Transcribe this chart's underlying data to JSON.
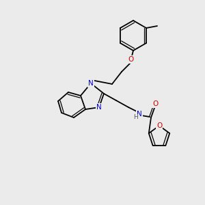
{
  "background_color": "#ebebeb",
  "atom_colors": {
    "C": "#000000",
    "N": "#0000cc",
    "O": "#cc0000",
    "H": "#555555"
  },
  "bond_color": "#000000",
  "figsize": [
    3.0,
    3.0
  ],
  "dpi": 100
}
